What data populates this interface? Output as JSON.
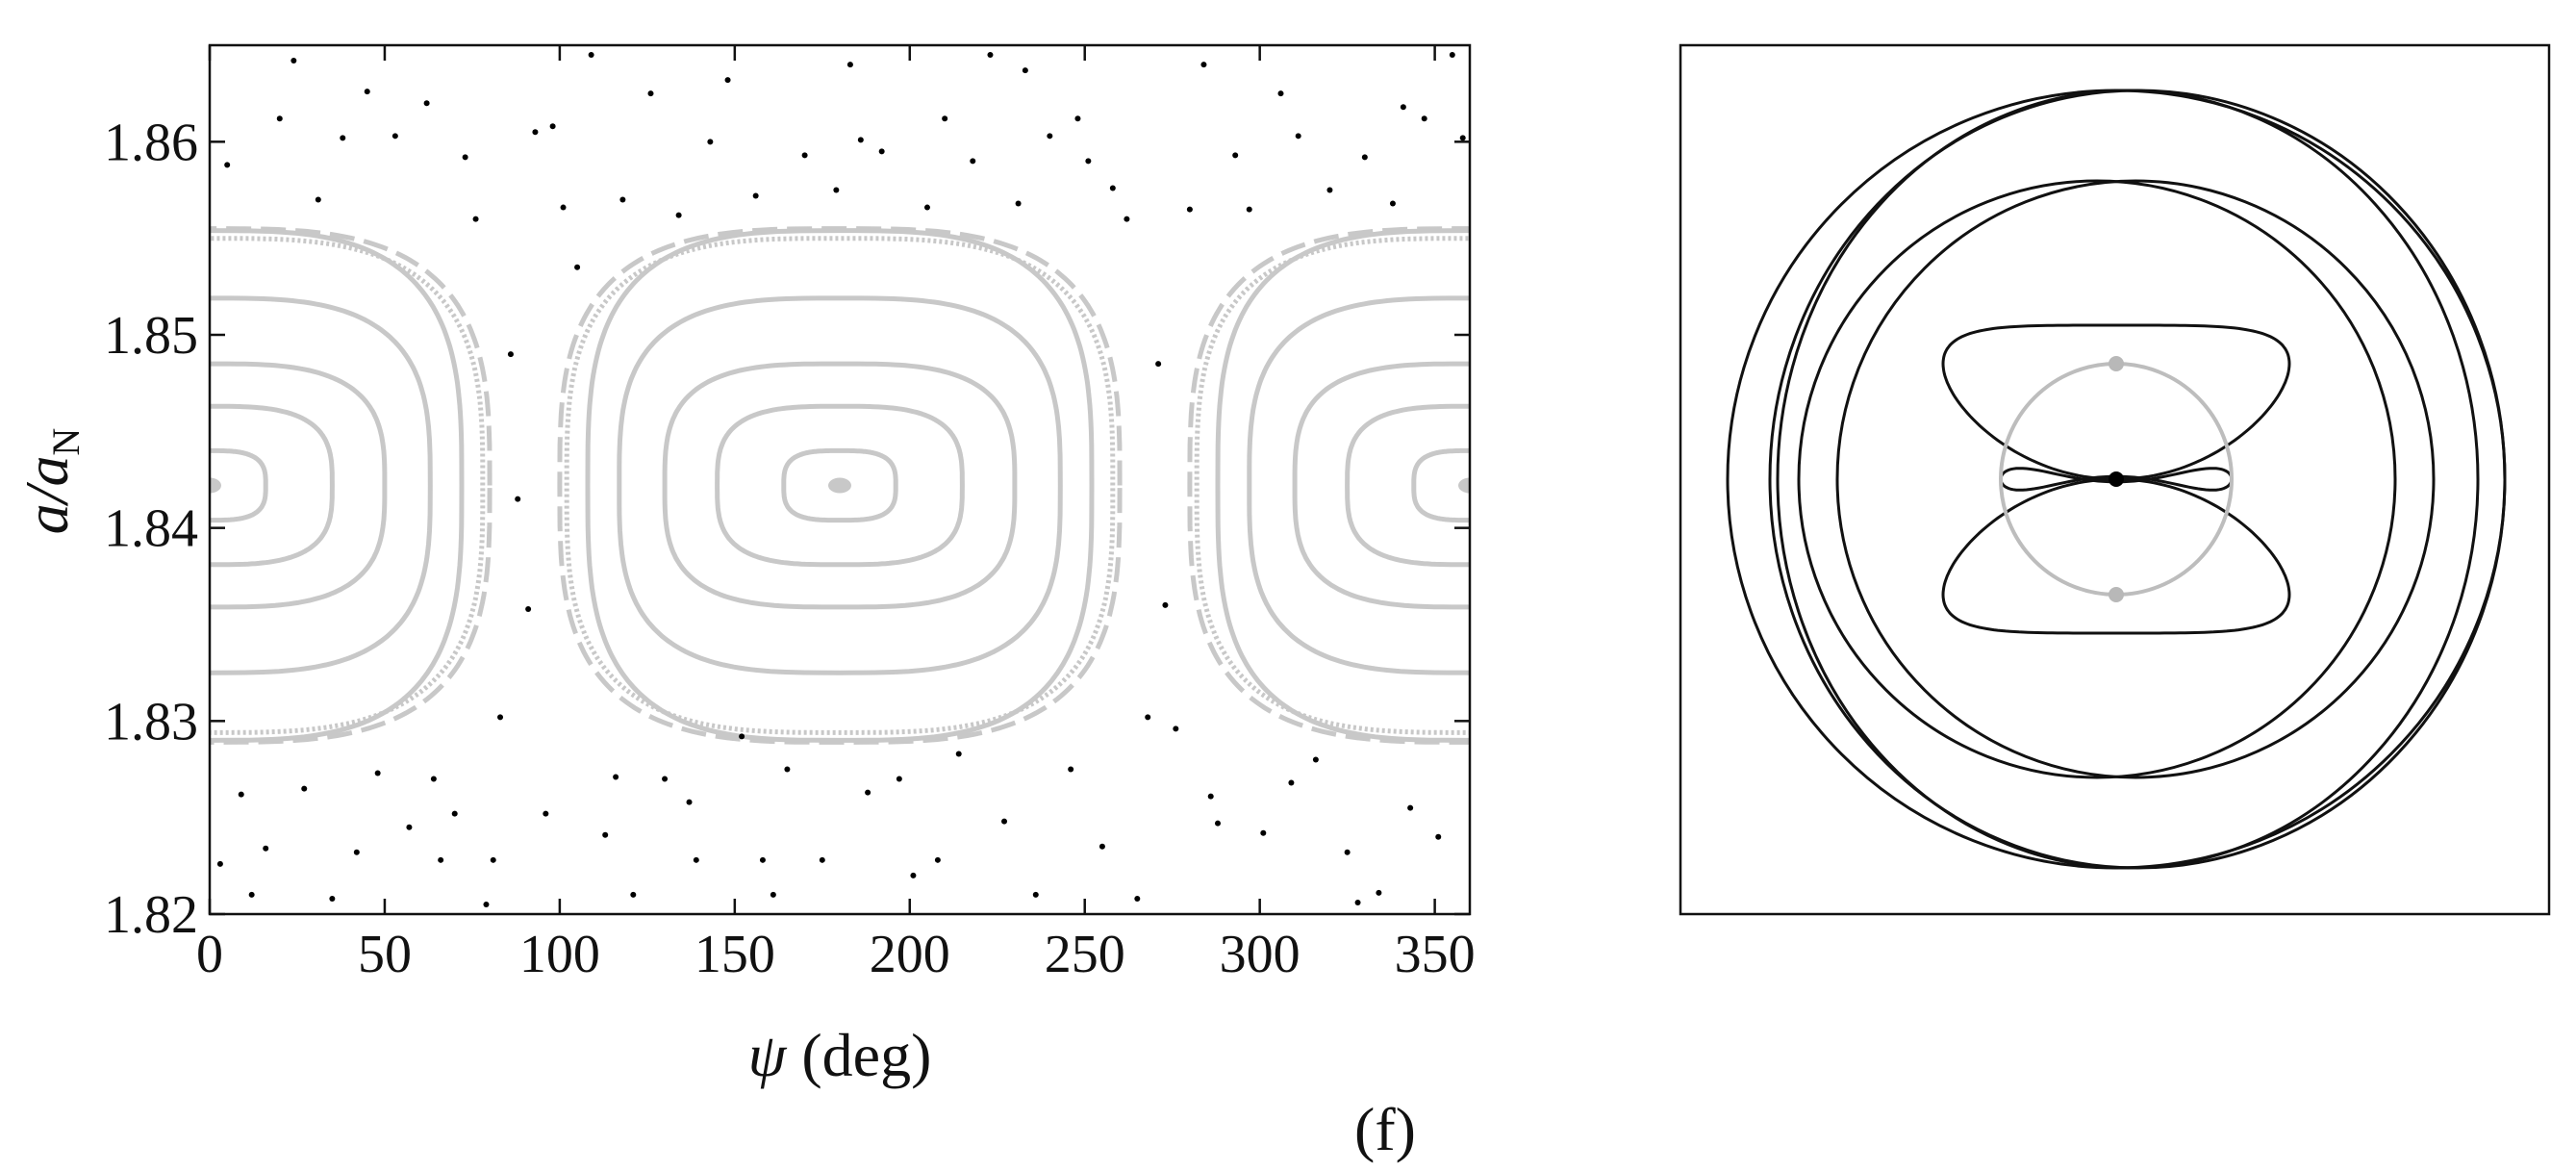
{
  "chart_data": [
    {
      "type": "scatter",
      "panel": "left",
      "title": "",
      "xlabel": "ψ (deg)",
      "ylabel": "a/a_N",
      "ylabel_main": "a/a",
      "ylabel_sub": "N",
      "xlabel_symbol": "ψ",
      "xlabel_unit": " (deg)",
      "xlim": [
        0,
        360
      ],
      "ylim": [
        1.82,
        1.865
      ],
      "xticks": [
        0,
        50,
        100,
        150,
        200,
        250,
        300,
        350
      ],
      "yticks": [
        1.82,
        1.83,
        1.84,
        1.85,
        1.86
      ],
      "ytick_labels": [
        "1.82",
        "1.83",
        "1.84",
        "1.85",
        "1.86"
      ],
      "grid": false,
      "colors": {
        "librating": "#c8c8c8",
        "chaotic": "#000000"
      },
      "series": [
        {
          "kind": "librating-curves",
          "style": "solid",
          "centers": [
            0,
            180,
            360
          ],
          "center_y": 1.8422,
          "amplitudes_y": [
            0.0018,
            0.0041,
            0.0063,
            0.0097,
            0.0132
          ],
          "half_widths_deg": [
            16,
            35,
            50,
            63,
            72
          ]
        },
        {
          "kind": "separatrix",
          "style": "solid",
          "centers": [
            0,
            180,
            360
          ],
          "center_y": 1.8422,
          "amplitude_y": 0.0128,
          "half_width_deg": 78
        },
        {
          "kind": "separatrix",
          "style": "dashed",
          "centers": [
            0,
            180,
            360
          ],
          "center_y": 1.8422,
          "amplitude_y": 0.0133,
          "half_width_deg": 80
        },
        {
          "kind": "fixed-points",
          "points": [
            [
              0,
              1.8422
            ],
            [
              180,
              1.8422
            ],
            [
              360,
              1.8422
            ]
          ]
        },
        {
          "kind": "chaotic-points",
          "points": [
            [
              5,
              1.8588
            ],
            [
              12,
              1.821
            ],
            [
              20,
              1.8612
            ],
            [
              27,
              1.8265
            ],
            [
              35,
              1.8208
            ],
            [
              42,
              1.8232
            ],
            [
              48,
              1.8273
            ],
            [
              53,
              1.8603
            ],
            [
              57,
              1.8245
            ],
            [
              62,
              1.862
            ],
            [
              66,
              1.8228
            ],
            [
              70,
              1.8252
            ],
            [
              73,
              1.8592
            ],
            [
              76,
              1.856
            ],
            [
              79,
              1.8205
            ],
            [
              83,
              1.8302
            ],
            [
              86,
              1.849
            ],
            [
              88,
              1.8415
            ],
            [
              91,
              1.8358
            ],
            [
              93,
              1.8605
            ],
            [
              96,
              1.8252
            ],
            [
              101,
              1.8566
            ],
            [
              105,
              1.8535
            ],
            [
              109,
              1.8645
            ],
            [
              113,
              1.8241
            ],
            [
              118,
              1.857
            ],
            [
              121,
              1.821
            ],
            [
              126,
              1.8625
            ],
            [
              130,
              1.827
            ],
            [
              134,
              1.8562
            ],
            [
              139,
              1.8228
            ],
            [
              143,
              1.86
            ],
            [
              148,
              1.8632
            ],
            [
              152,
              1.8292
            ],
            [
              156,
              1.8572
            ],
            [
              161,
              1.821
            ],
            [
              165,
              1.8275
            ],
            [
              170,
              1.8593
            ],
            [
              175,
              1.8228
            ],
            [
              179,
              1.8575
            ],
            [
              183,
              1.864
            ],
            [
              188,
              1.8263
            ],
            [
              192,
              1.8595
            ],
            [
              197,
              1.827
            ],
            [
              201,
              1.822
            ],
            [
              205,
              1.8566
            ],
            [
              210,
              1.8612
            ],
            [
              214,
              1.8283
            ],
            [
              218,
              1.859
            ],
            [
              223,
              1.8645
            ],
            [
              227,
              1.8248
            ],
            [
              231,
              1.8568
            ],
            [
              236,
              1.821
            ],
            [
              240,
              1.8603
            ],
            [
              246,
              1.8275
            ],
            [
              251,
              1.859
            ],
            [
              255,
              1.8235
            ],
            [
              258,
              1.8576
            ],
            [
              262,
              1.856
            ],
            [
              265,
              1.8208
            ],
            [
              268,
              1.8302
            ],
            [
              271,
              1.8485
            ],
            [
              273,
              1.836
            ],
            [
              276,
              1.8296
            ],
            [
              280,
              1.8565
            ],
            [
              284,
              1.864
            ],
            [
              288,
              1.8247
            ],
            [
              293,
              1.8593
            ],
            [
              297,
              1.8565
            ],
            [
              301,
              1.8242
            ],
            [
              306,
              1.8625
            ],
            [
              311,
              1.8603
            ],
            [
              316,
              1.828
            ],
            [
              320,
              1.8575
            ],
            [
              325,
              1.8232
            ],
            [
              330,
              1.8592
            ],
            [
              334,
              1.8211
            ],
            [
              338,
              1.8568
            ],
            [
              343,
              1.8255
            ],
            [
              347,
              1.8612
            ],
            [
              351,
              1.824
            ],
            [
              355,
              1.8645
            ],
            [
              358,
              1.8602
            ],
            [
              3,
              1.8226
            ],
            [
              9,
              1.8262
            ],
            [
              16,
              1.8234
            ],
            [
              24,
              1.8642
            ],
            [
              31,
              1.857
            ],
            [
              38,
              1.8602
            ],
            [
              45,
              1.8626
            ],
            [
              64,
              1.827
            ],
            [
              81,
              1.8228
            ],
            [
              98,
              1.8608
            ],
            [
              116,
              1.8271
            ],
            [
              137,
              1.8258
            ],
            [
              158,
              1.8228
            ],
            [
              186,
              1.8601
            ],
            [
              208,
              1.8228
            ],
            [
              233,
              1.8637
            ],
            [
              248,
              1.8612
            ],
            [
              286,
              1.8261
            ],
            [
              309,
              1.8268
            ],
            [
              328,
              1.8206
            ],
            [
              341,
              1.8618
            ]
          ]
        }
      ]
    },
    {
      "type": "orbit-diagram",
      "panel": "right",
      "colors": {
        "orbit": "#111111",
        "reference-circle": "#bdbdbd",
        "center-dot": "#000000",
        "grey-dots": "#b8b8b8"
      }
    }
  ],
  "caption": {
    "panel_label": "(f)"
  }
}
